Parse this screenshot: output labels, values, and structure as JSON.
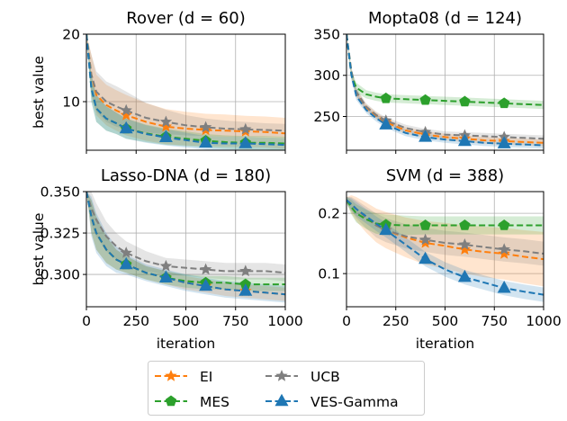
{
  "chart_data": [
    {
      "type": "line",
      "title": "Rover (d = 60)",
      "ylabel": "best value",
      "xlabel": "",
      "xlim": [
        0,
        1000
      ],
      "ylim": [
        2.8,
        20
      ],
      "xticks": [
        0,
        250,
        500,
        750,
        1000
      ],
      "xtick_labels_shown": false,
      "yticks": [
        10,
        20
      ],
      "ytick_labels": [
        "10",
        "20"
      ],
      "grid": true,
      "x": [
        0,
        25,
        50,
        100,
        150,
        200,
        300,
        400,
        500,
        600,
        700,
        800,
        900,
        1000
      ],
      "series": [
        {
          "key": "EI",
          "values": [
            20,
            14,
            11,
            9.5,
            8.7,
            8,
            7,
            6.3,
            6,
            5.8,
            5.7,
            5.6,
            5.5,
            5.3
          ],
          "spread": [
            0,
            3,
            3,
            3,
            3,
            3,
            2.8,
            2.6,
            2.5,
            2.4,
            2.4,
            2.3,
            2.3,
            2.3
          ]
        },
        {
          "key": "UCB",
          "values": [
            20,
            14,
            11.5,
            10,
            9.3,
            8.7,
            7.6,
            7,
            6.5,
            6.2,
            6,
            5.9,
            5.8,
            5.7
          ],
          "spread": [
            0,
            3,
            3,
            3,
            3,
            2.8,
            2.2,
            1.8,
            1.5,
            1.3,
            1.2,
            1.1,
            1,
            1
          ]
        },
        {
          "key": "MES",
          "values": [
            20,
            12,
            9,
            7.5,
            6.8,
            6,
            5.3,
            4.8,
            4.5,
            4.2,
            4.0,
            3.9,
            3.9,
            3.8
          ],
          "spread": [
            0,
            2,
            2,
            1.8,
            1.6,
            1.5,
            1.3,
            1.2,
            1.1,
            1,
            1,
            1,
            1,
            1
          ]
        },
        {
          "key": "VES",
          "values": [
            20,
            12,
            9,
            7.5,
            6.8,
            6,
            5.2,
            4.7,
            4.3,
            3.9,
            3.8,
            3.8,
            3.7,
            3.6
          ],
          "spread": [
            0,
            2,
            2,
            1.8,
            1.6,
            1.5,
            1.3,
            1.2,
            1.1,
            1,
            1,
            1,
            1,
            1
          ]
        }
      ]
    },
    {
      "type": "line",
      "title": "Mopta08 (d = 124)",
      "ylabel": "",
      "xlabel": "",
      "xlim": [
        0,
        1000
      ],
      "ylim": [
        209,
        350
      ],
      "xticks": [
        0,
        250,
        500,
        750,
        1000
      ],
      "xtick_labels_shown": false,
      "yticks": [
        250,
        300,
        350
      ],
      "ytick_labels": [
        "250",
        "300",
        "350"
      ],
      "grid": true,
      "x": [
        0,
        25,
        50,
        100,
        150,
        200,
        300,
        400,
        500,
        600,
        700,
        800,
        900,
        1000
      ],
      "series": [
        {
          "key": "EI",
          "values": [
            350,
            302,
            278,
            261,
            251,
            243,
            233,
            228,
            225,
            223,
            221,
            220,
            219,
            218
          ],
          "spread": [
            0,
            5,
            5,
            4,
            4,
            4,
            4,
            4,
            4,
            4,
            4,
            4,
            4,
            4
          ]
        },
        {
          "key": "UCB",
          "values": [
            350,
            305,
            280,
            262,
            252,
            245,
            236,
            231,
            228,
            227,
            226,
            225,
            224,
            223
          ],
          "spread": [
            0,
            5,
            5,
            4,
            4,
            4,
            4,
            4,
            4,
            4,
            4,
            4,
            4,
            4
          ]
        },
        {
          "key": "MES",
          "values": [
            350,
            300,
            285,
            277,
            274,
            272,
            271,
            270,
            269,
            268,
            267,
            266,
            265,
            264
          ],
          "spread": [
            0,
            6,
            6,
            5,
            5,
            5,
            5,
            5,
            5,
            5,
            5,
            5,
            5,
            5
          ]
        },
        {
          "key": "VES",
          "values": [
            350,
            300,
            275,
            258,
            248,
            240,
            230,
            225,
            222,
            220,
            218,
            217,
            216,
            215
          ],
          "spread": [
            0,
            5,
            5,
            4,
            4,
            4,
            4,
            4,
            4,
            4,
            4,
            4,
            4,
            4
          ]
        }
      ]
    },
    {
      "type": "line",
      "title": "Lasso-DNA (d = 180)",
      "ylabel": "best value",
      "xlabel": "iteration",
      "xlim": [
        0,
        1000
      ],
      "ylim": [
        0.2805,
        0.35
      ],
      "xticks": [
        0,
        250,
        500,
        750,
        1000
      ],
      "xtick_labels": [
        "0",
        "250",
        "500",
        "750",
        "1000"
      ],
      "xtick_labels_shown": true,
      "yticks": [
        0.3,
        0.325,
        0.35
      ],
      "ytick_labels": [
        "0.300",
        "0.325",
        "0.350"
      ],
      "grid": true,
      "x": [
        0,
        25,
        50,
        100,
        150,
        200,
        300,
        400,
        500,
        600,
        700,
        800,
        900,
        1000
      ],
      "series": [
        {
          "key": "EI",
          "values": [
            0.35,
            0.335,
            0.325,
            0.315,
            0.309,
            0.306,
            0.301,
            0.298,
            0.295,
            0.293,
            0.291,
            0.29,
            0.289,
            0.288
          ],
          "spread": [
            0,
            0.01,
            0.01,
            0.008,
            0.006,
            0.005,
            0.004,
            0.004,
            0.004,
            0.004,
            0.004,
            0.004,
            0.004,
            0.004
          ]
        },
        {
          "key": "UCB",
          "values": [
            0.35,
            0.34,
            0.333,
            0.323,
            0.317,
            0.313,
            0.308,
            0.305,
            0.304,
            0.303,
            0.302,
            0.302,
            0.302,
            0.301
          ],
          "spread": [
            0,
            0.01,
            0.01,
            0.009,
            0.008,
            0.007,
            0.006,
            0.005,
            0.005,
            0.005,
            0.005,
            0.005,
            0.005,
            0.005
          ]
        },
        {
          "key": "MES",
          "values": [
            0.35,
            0.335,
            0.325,
            0.315,
            0.309,
            0.306,
            0.301,
            0.298,
            0.296,
            0.295,
            0.295,
            0.294,
            0.294,
            0.294
          ],
          "spread": [
            0,
            0.01,
            0.01,
            0.008,
            0.006,
            0.005,
            0.004,
            0.004,
            0.004,
            0.004,
            0.004,
            0.004,
            0.004,
            0.004
          ]
        },
        {
          "key": "VES",
          "values": [
            0.35,
            0.335,
            0.325,
            0.315,
            0.309,
            0.306,
            0.301,
            0.298,
            0.295,
            0.293,
            0.291,
            0.29,
            0.289,
            0.288
          ],
          "spread": [
            0,
            0.012,
            0.012,
            0.01,
            0.008,
            0.006,
            0.005,
            0.005,
            0.005,
            0.005,
            0.005,
            0.005,
            0.005,
            0.005
          ]
        }
      ]
    },
    {
      "type": "line",
      "title": "SVM (d = 388)",
      "ylabel": "",
      "xlabel": "iteration",
      "xlim": [
        0,
        1000
      ],
      "ylim": [
        0.045,
        0.236
      ],
      "xticks": [
        0,
        250,
        500,
        750,
        1000
      ],
      "xtick_labels": [
        "0",
        "250",
        "500",
        "750",
        "1000"
      ],
      "xtick_labels_shown": true,
      "yticks": [
        0.1,
        0.2
      ],
      "ytick_labels": [
        "0.1",
        "0.2"
      ],
      "grid": true,
      "x": [
        0,
        25,
        50,
        100,
        150,
        200,
        300,
        400,
        500,
        600,
        700,
        800,
        900,
        1000
      ],
      "series": [
        {
          "key": "EI",
          "values": [
            0.222,
            0.215,
            0.207,
            0.193,
            0.18,
            0.172,
            0.16,
            0.151,
            0.146,
            0.14,
            0.136,
            0.133,
            0.128,
            0.124
          ],
          "spread": [
            0.005,
            0.015,
            0.02,
            0.025,
            0.028,
            0.03,
            0.033,
            0.036,
            0.038,
            0.04,
            0.042,
            0.043,
            0.044,
            0.045
          ]
        },
        {
          "key": "UCB",
          "values": [
            0.222,
            0.215,
            0.207,
            0.193,
            0.18,
            0.172,
            0.162,
            0.156,
            0.151,
            0.148,
            0.144,
            0.14,
            0.137,
            0.133
          ],
          "spread": [
            0.005,
            0.012,
            0.015,
            0.018,
            0.02,
            0.02,
            0.02,
            0.02,
            0.02,
            0.02,
            0.02,
            0.02,
            0.02,
            0.02
          ]
        },
        {
          "key": "MES",
          "values": [
            0.222,
            0.21,
            0.2,
            0.19,
            0.183,
            0.181,
            0.18,
            0.18,
            0.18,
            0.18,
            0.18,
            0.18,
            0.18,
            0.18
          ],
          "spread": [
            0.005,
            0.012,
            0.015,
            0.016,
            0.017,
            0.017,
            0.016,
            0.015,
            0.015,
            0.015,
            0.015,
            0.015,
            0.015,
            0.015
          ]
        },
        {
          "key": "VES",
          "values": [
            0.222,
            0.215,
            0.207,
            0.195,
            0.183,
            0.172,
            0.148,
            0.124,
            0.107,
            0.094,
            0.085,
            0.076,
            0.07,
            0.065
          ],
          "spread": [
            0.005,
            0.01,
            0.012,
            0.012,
            0.012,
            0.012,
            0.012,
            0.012,
            0.012,
            0.012,
            0.012,
            0.012,
            0.012,
            0.012
          ]
        }
      ]
    }
  ],
  "legend": {
    "placement": "bottom-center",
    "entries": [
      {
        "key": "EI",
        "label": "EI",
        "color": "#ff7f0e",
        "marker": "star"
      },
      {
        "key": "MES",
        "label": "MES",
        "color": "#2ca02c",
        "marker": "pentagon"
      },
      {
        "key": "UCB",
        "label": "UCB",
        "color": "#7f7f7f",
        "marker": "star"
      },
      {
        "key": "VES",
        "label": "VES-Gamma",
        "color": "#1f77b4",
        "marker": "triangle"
      }
    ]
  },
  "marker_iterations": [
    200,
    400,
    600,
    800
  ]
}
